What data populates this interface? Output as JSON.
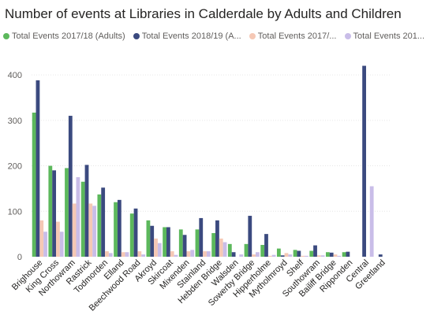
{
  "chart_data": {
    "type": "bar",
    "title": "Number of events at Libraries in Calderdale by Adults and Children",
    "legend_placement": "top",
    "grid": true,
    "ylim": [
      0,
      440
    ],
    "yticks": [
      0,
      100,
      200,
      300,
      400
    ],
    "categories": [
      "Brighouse",
      "King Cross",
      "Northowram",
      "Rastrick",
      "Todmorden",
      "Elland",
      "Beechwood Road",
      "Akroyd",
      "Skircoat",
      "Mixenden",
      "Stainland",
      "Hebden Bridge",
      "Walsden",
      "Sowerby Bridge",
      "Hipperholme",
      "Mytholmroyd",
      "Shelf",
      "Southowram",
      "Bailiff Bridge",
      "Ripponden",
      "Central",
      "Greetland"
    ],
    "series": [
      {
        "name": "Total Events 2017/18 (Adults)",
        "color": "#5cb85c",
        "values": [
          317,
          200,
          195,
          165,
          137,
          120,
          95,
          80,
          65,
          60,
          60,
          52,
          28,
          28,
          26,
          18,
          15,
          13,
          10,
          10,
          0,
          0
        ]
      },
      {
        "name": "Total Events 2018/19 (A...",
        "color": "#3b4a7f",
        "values": [
          388,
          190,
          310,
          202,
          152,
          125,
          106,
          68,
          65,
          48,
          85,
          80,
          10,
          90,
          50,
          3,
          13,
          25,
          9,
          11,
          420,
          5
        ]
      },
      {
        "name": "Total Events 2017/...",
        "color": "#f5c8b5",
        "values": [
          80,
          77,
          117,
          117,
          12,
          10,
          12,
          40,
          12,
          12,
          12,
          40,
          0,
          5,
          2,
          8,
          2,
          3,
          5,
          0,
          0,
          0
        ]
      },
      {
        "name": "Total Events 201...",
        "color": "#c9bde8",
        "values": [
          55,
          55,
          175,
          112,
          8,
          10,
          5,
          30,
          4,
          15,
          12,
          32,
          5,
          10,
          4,
          5,
          2,
          3,
          2,
          0,
          155,
          0
        ]
      }
    ]
  }
}
